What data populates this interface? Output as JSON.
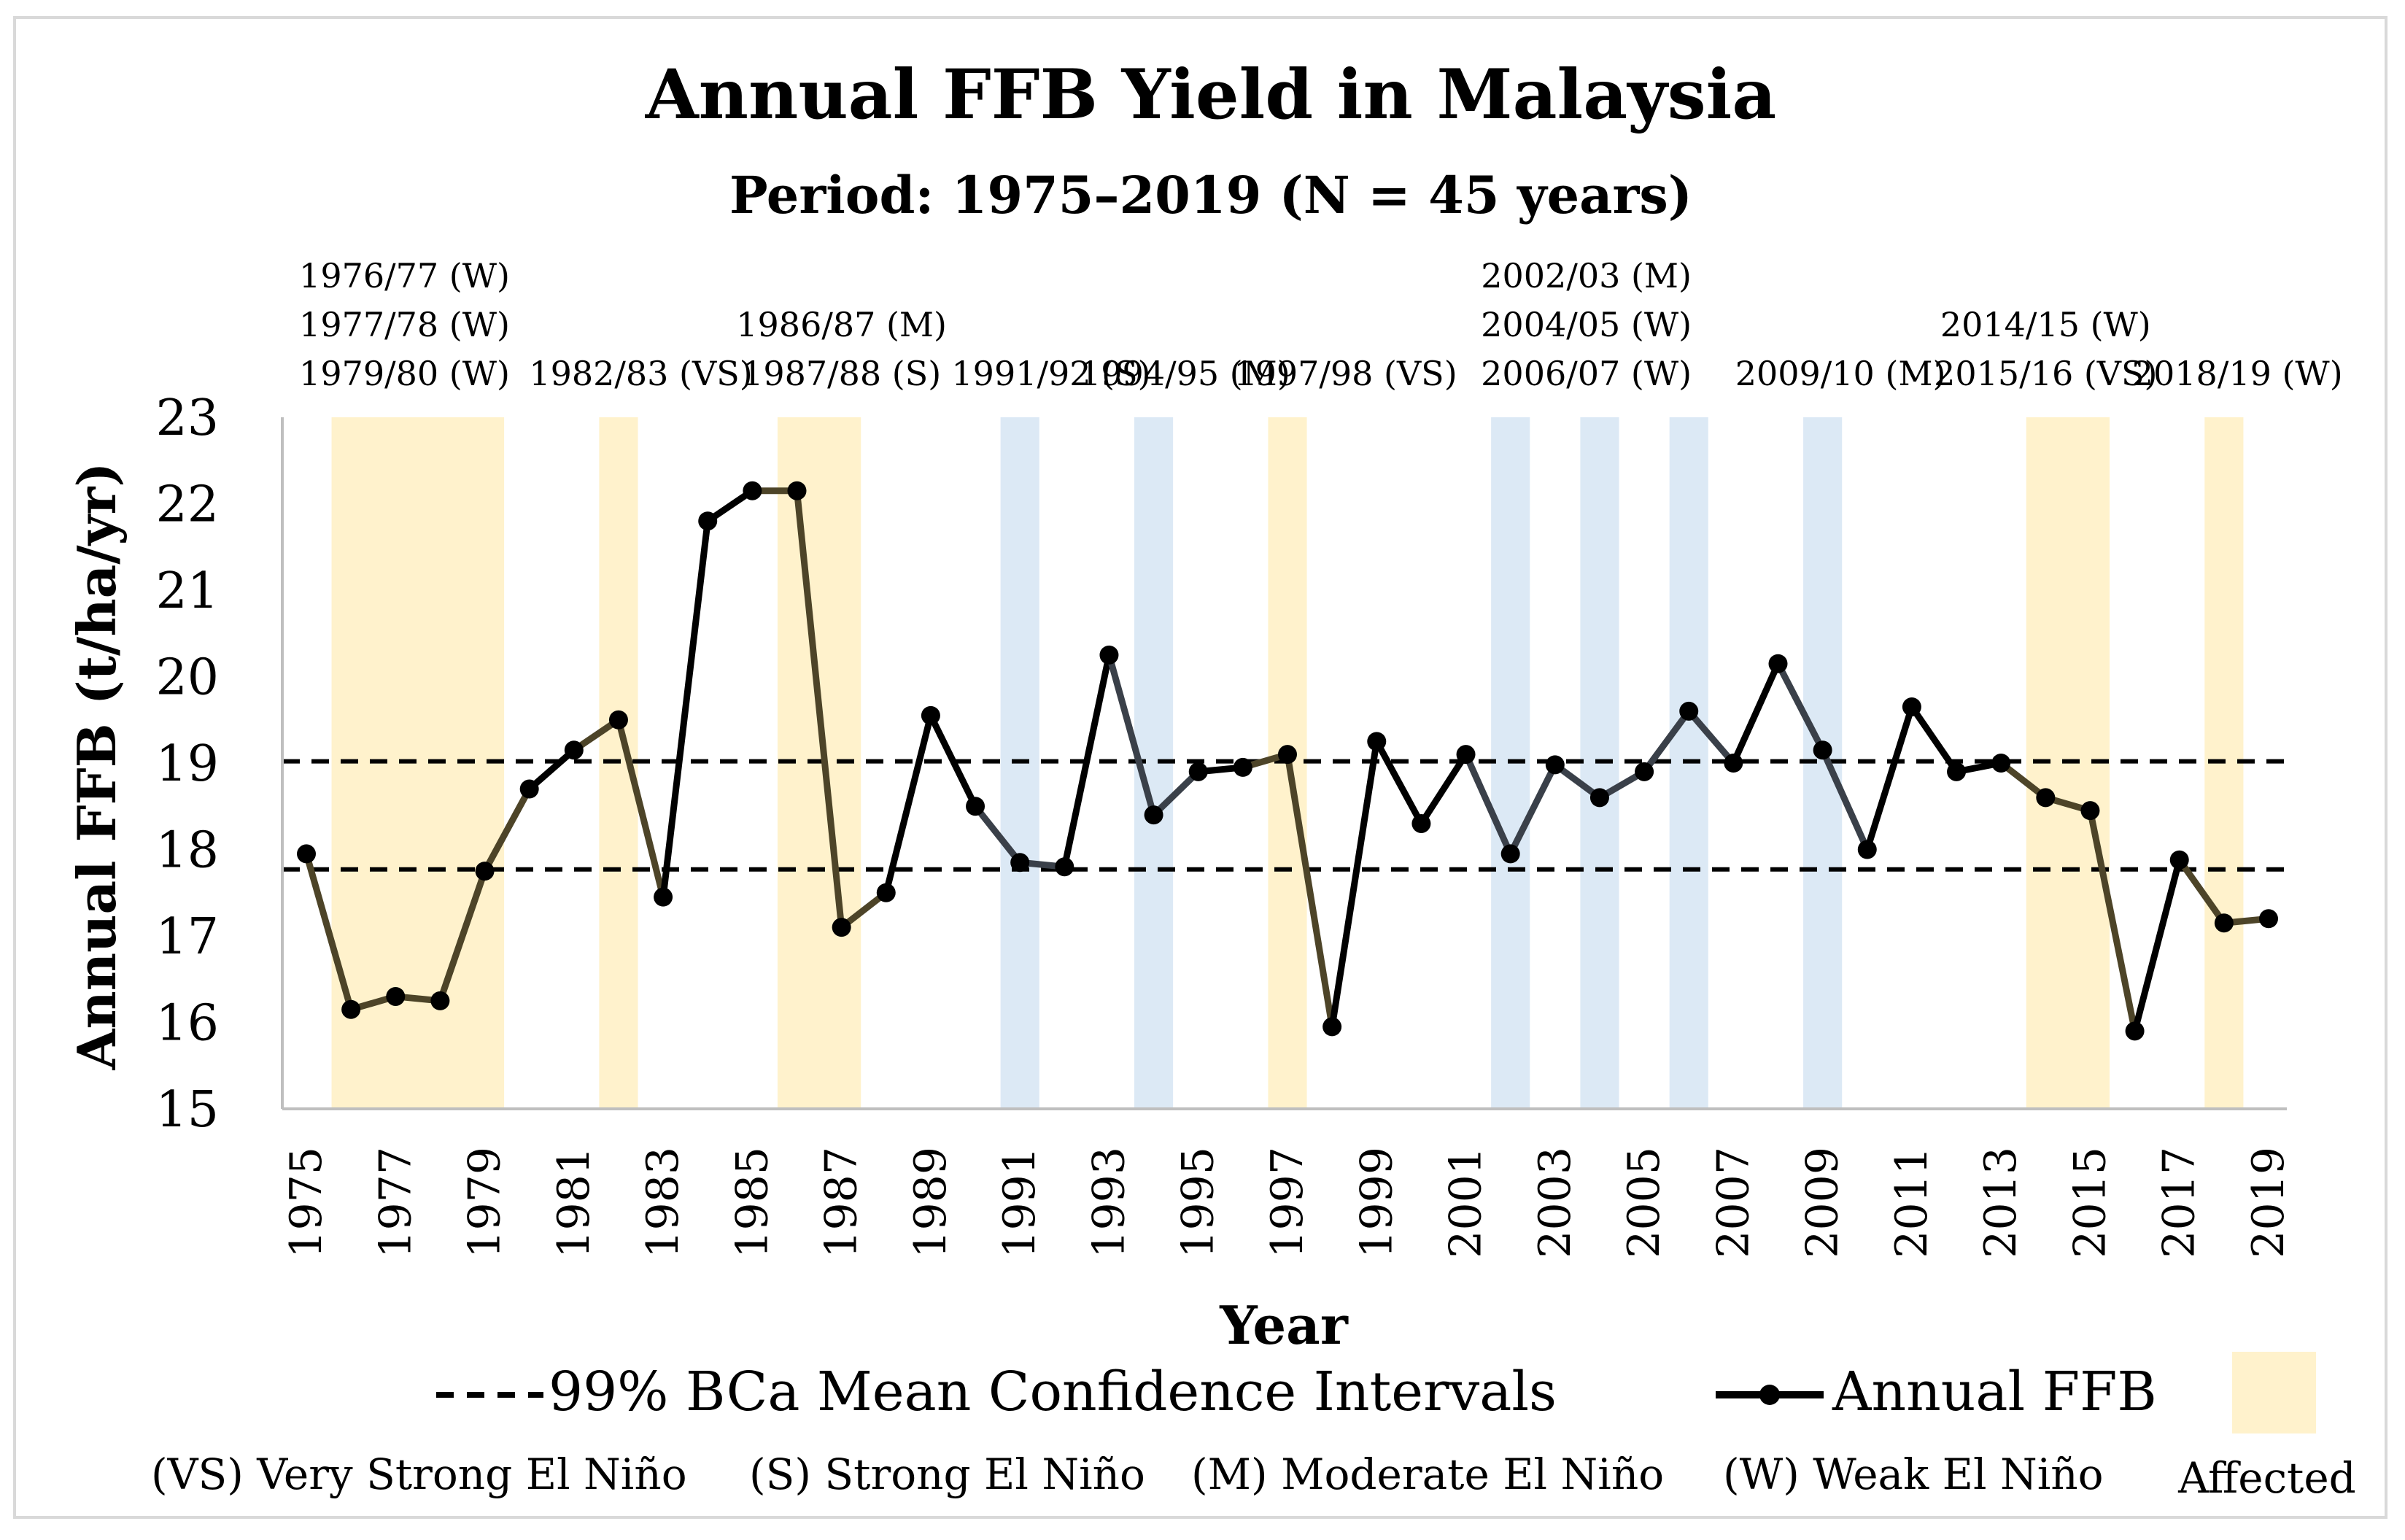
{
  "chart_data": {
    "type": "line",
    "title": "Annual FFB Yield in Malaysia",
    "subtitle": "Period: 1975–2019 (N = 45 years)",
    "xlabel": "Year",
    "ylabel": "Annual FFB (t/ha/yr)",
    "ylim": [
      15,
      23
    ],
    "yticks": [
      "15",
      "16",
      "17",
      "18",
      "19",
      "20",
      "21",
      "22",
      "23"
    ],
    "xticks": [
      "1975",
      "1977",
      "1979",
      "1981",
      "1983",
      "1985",
      "1987",
      "1989",
      "1991",
      "1993",
      "1995",
      "1997",
      "1999",
      "2001",
      "2003",
      "2005",
      "2007",
      "2009",
      "2011",
      "2013",
      "2015",
      "2017",
      "2019"
    ],
    "x": [
      1975,
      1976,
      1977,
      1978,
      1979,
      1980,
      1981,
      1982,
      1983,
      1984,
      1985,
      1986,
      1987,
      1988,
      1989,
      1990,
      1991,
      1992,
      1993,
      1994,
      1995,
      1996,
      1997,
      1998,
      1999,
      2000,
      2001,
      2002,
      2003,
      2004,
      2005,
      2006,
      2007,
      2008,
      2009,
      2010,
      2011,
      2012,
      2013,
      2014,
      2015,
      2016,
      2017,
      2018,
      2019
    ],
    "series": [
      {
        "name": "Annual FFB",
        "values": [
          17.95,
          16.15,
          16.3,
          16.25,
          17.75,
          18.7,
          19.15,
          19.5,
          17.45,
          21.8,
          22.15,
          22.15,
          17.1,
          17.5,
          19.55,
          18.5,
          17.85,
          17.8,
          20.25,
          18.4,
          18.9,
          18.95,
          19.1,
          15.95,
          19.25,
          18.3,
          19.1,
          17.95,
          18.98,
          18.6,
          18.9,
          19.6,
          19.0,
          20.15,
          19.15,
          18.0,
          19.65,
          18.9,
          19.0,
          18.6,
          18.45,
          15.9,
          17.88,
          17.15,
          17.2
        ]
      }
    ],
    "ci_lines": [
      19.02,
      17.77
    ],
    "highlight_bands": [
      {
        "from": 1976,
        "to": 1979,
        "kind": "affected"
      },
      {
        "from": 1982,
        "to": 1982,
        "kind": "affected"
      },
      {
        "from": 1986,
        "to": 1987,
        "kind": "affected"
      },
      {
        "from": 1991,
        "to": 1991,
        "kind": "weak"
      },
      {
        "from": 1994,
        "to": 1994,
        "kind": "weak"
      },
      {
        "from": 1997,
        "to": 1997,
        "kind": "affected"
      },
      {
        "from": 2002,
        "to": 2002,
        "kind": "weak"
      },
      {
        "from": 2004,
        "to": 2004,
        "kind": "weak"
      },
      {
        "from": 2006,
        "to": 2006,
        "kind": "weak"
      },
      {
        "from": 2009,
        "to": 2009,
        "kind": "weak"
      },
      {
        "from": 2014,
        "to": 2015,
        "kind": "affected"
      },
      {
        "from": 2018,
        "to": 2018,
        "kind": "affected"
      }
    ],
    "colors": {
      "affected": "#fff2cc",
      "weak": "#dce9f5",
      "line": "#000000",
      "line_in_affected": "#4d4428",
      "line_in_weak": "#3a4049",
      "axis": "#bfbfbf"
    },
    "annotations": [
      {
        "year": 1977.2,
        "lines": [
          "1976/77 (W)",
          "1977/78 (W)",
          "1979/80 (W)"
        ]
      },
      {
        "year": 1982.5,
        "lines": [
          "1982/83 (VS)"
        ]
      },
      {
        "year": 1987.0,
        "lines": [
          "1986/87 (M)",
          "1987/88 (S)"
        ]
      },
      {
        "year": 1991.7,
        "lines": [
          "1991/92 (S)"
        ]
      },
      {
        "year": 1994.7,
        "lines": [
          "1994/95 (M)"
        ]
      },
      {
        "year": 1998.3,
        "lines": [
          "1997/98 (VS)"
        ]
      },
      {
        "year": 2003.7,
        "lines": [
          "2002/03 (M)",
          "2004/05 (W)",
          "2006/07 (W)"
        ]
      },
      {
        "year": 2009.4,
        "lines": [
          "2009/10 (M)"
        ]
      },
      {
        "year": 2014.0,
        "lines": [
          "2014/15 (W)",
          "2015/16 (VS)"
        ]
      },
      {
        "year": 2018.3,
        "lines": [
          "2018/19 (W)"
        ]
      }
    ],
    "legend": {
      "ci_label": "99% BCa Mean Confidence Intervals",
      "series_label": "Annual FFB",
      "affected_label": "Affected",
      "intensity_labels": [
        "(VS) Very Strong El Niño",
        "(S) Strong El Niño",
        "(M) Moderate El Niño",
        "(W) Weak El Niño"
      ]
    }
  }
}
